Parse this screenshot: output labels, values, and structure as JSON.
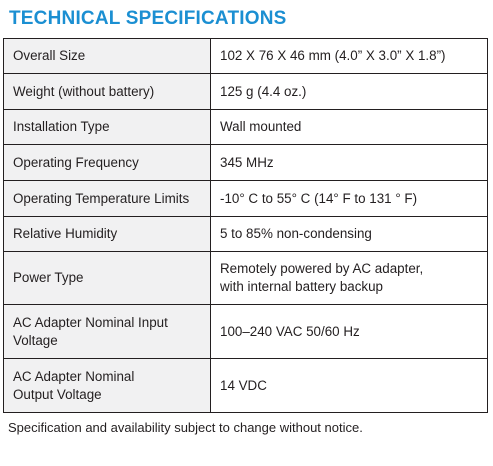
{
  "title": "TECHNICAL SPECIFICATIONS",
  "rows": [
    {
      "label": [
        "Overall Size"
      ],
      "value": [
        "102 X 76 X 46 mm (4.0” X 3.0” X 1.8”)"
      ]
    },
    {
      "label": [
        "Weight (without battery)"
      ],
      "value": [
        "125 g (4.4 oz.)"
      ]
    },
    {
      "label": [
        "Installation Type"
      ],
      "value": [
        "Wall mounted"
      ]
    },
    {
      "label": [
        "Operating Frequency"
      ],
      "value": [
        "345 MHz"
      ]
    },
    {
      "label": [
        "Operating Temperature Limits"
      ],
      "value": [
        "-10° C to 55° C (14° F to 131 ° F)"
      ]
    },
    {
      "label": [
        "Relative Humidity"
      ],
      "value": [
        "5 to 85% non-condensing"
      ]
    },
    {
      "label": [
        "Power Type"
      ],
      "value": [
        "Remotely powered by AC adapter,",
        "with internal battery backup"
      ]
    },
    {
      "label": [
        "AC Adapter Nominal Input",
        "Voltage"
      ],
      "value": [
        "100–240 VAC 50/60 Hz"
      ]
    },
    {
      "label": [
        "AC Adapter Nominal",
        "Output Voltage"
      ],
      "value": [
        "14 VDC"
      ]
    }
  ],
  "footnote": "Specification and availability subject to change without notice."
}
